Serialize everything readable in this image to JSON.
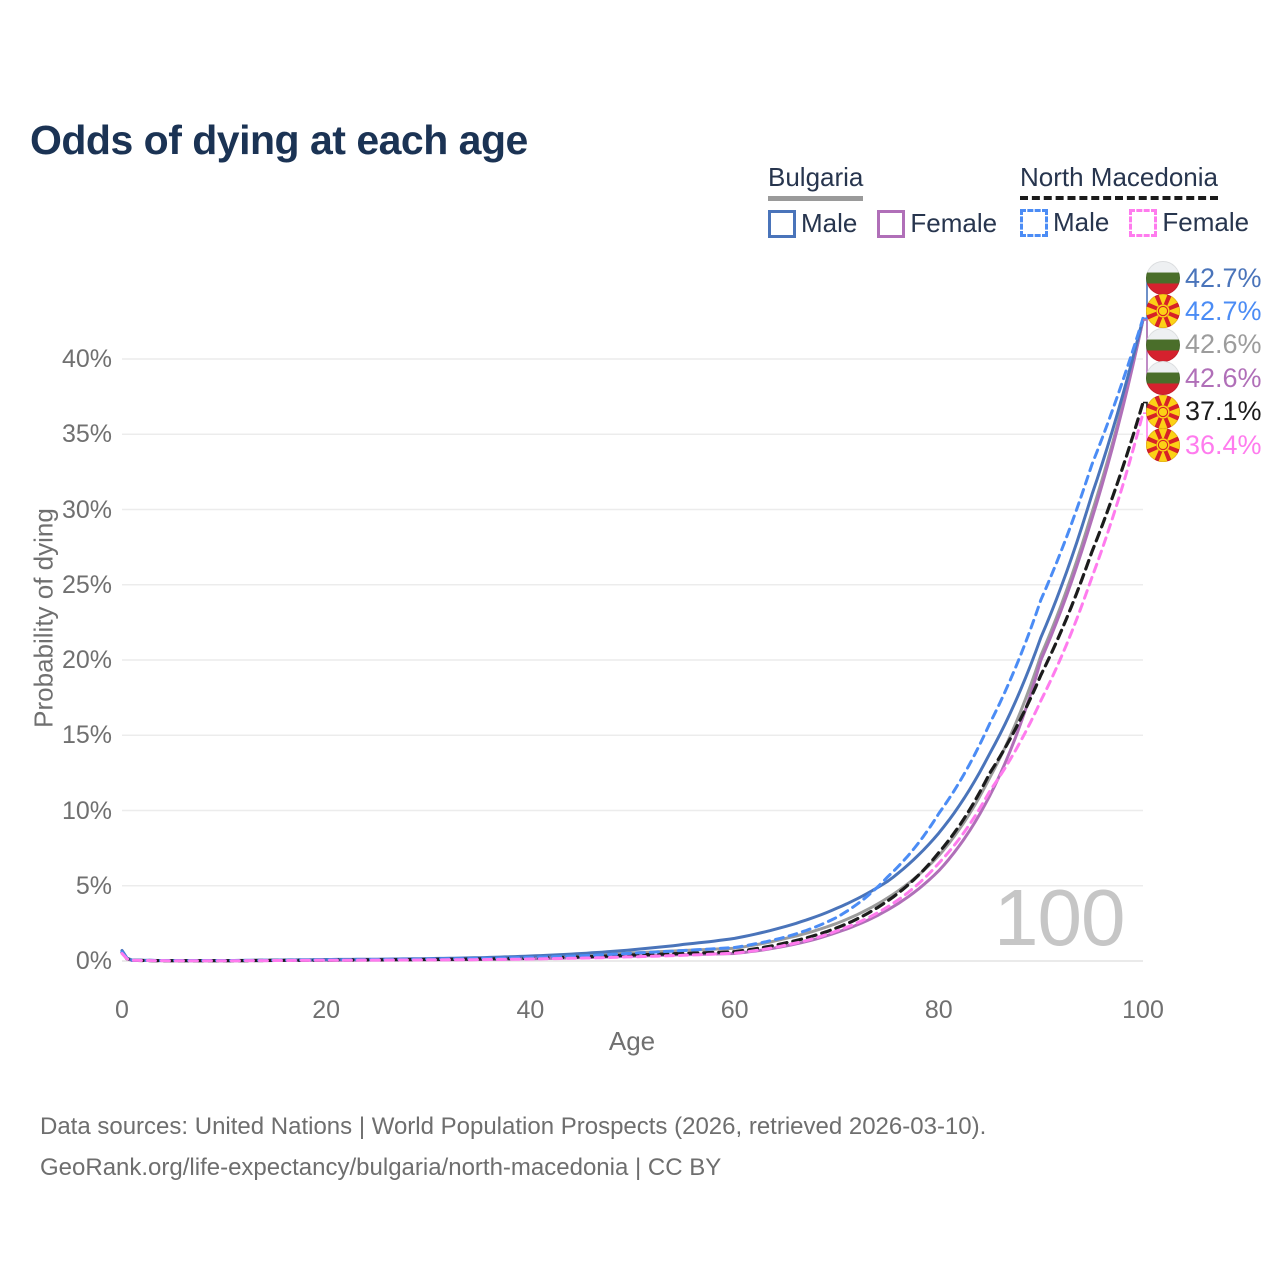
{
  "header": {
    "title": "Odds of dying at each age"
  },
  "legend": {
    "groups": [
      {
        "id": "bulgaria",
        "title": "Bulgaria",
        "line_style": "solid",
        "line_color": "#9a9a9a",
        "items": [
          {
            "label": "Male",
            "color": "#4a74ba",
            "dashed": false
          },
          {
            "label": "Female",
            "color": "#b06fb8",
            "dashed": false
          }
        ]
      },
      {
        "id": "north-macedonia",
        "title": "North Macedonia",
        "line_style": "dashed",
        "line_color": "#1b1b1b",
        "items": [
          {
            "label": "Male",
            "color": "#4b8cf5",
            "dashed": true
          },
          {
            "label": "Female",
            "color": "#ff7bee",
            "dashed": true
          }
        ]
      }
    ]
  },
  "chart_data": {
    "type": "line",
    "title": "Odds of dying at each age",
    "xlabel": "Age",
    "ylabel": "Probability of dying",
    "xlim": [
      0,
      100
    ],
    "ylim_pct": [
      0,
      44
    ],
    "xticks": [
      0,
      20,
      40,
      60,
      80,
      100
    ],
    "yticks_pct": [
      0,
      5,
      10,
      15,
      20,
      25,
      30,
      35,
      40
    ],
    "ytick_labels": [
      "0%",
      "5%",
      "10%",
      "15%",
      "20%",
      "25%",
      "30%",
      "35%",
      "40%"
    ],
    "grid": true,
    "legend_position": "top-right",
    "hover_age_label": "100",
    "x": [
      0,
      1,
      5,
      10,
      15,
      20,
      25,
      30,
      35,
      40,
      45,
      50,
      55,
      60,
      65,
      70,
      75,
      80,
      85,
      90,
      95,
      100
    ],
    "series": [
      {
        "id": "bulgaria-male",
        "name": "Bulgaria Male",
        "country": "Bulgaria",
        "flag": "bg",
        "color": "#4a74ba",
        "line": "solid",
        "end_label": "42.7%",
        "values": [
          0.7,
          0.05,
          0.03,
          0.03,
          0.06,
          0.1,
          0.12,
          0.16,
          0.22,
          0.33,
          0.5,
          0.75,
          1.1,
          1.5,
          2.3,
          3.5,
          5.3,
          8.5,
          13.8,
          21.5,
          31.0,
          42.7
        ]
      },
      {
        "id": "north-macedonia-male",
        "name": "North Macedonia Male",
        "country": "North Macedonia",
        "flag": "mk",
        "color": "#4b8cf5",
        "line": "dashed",
        "end_label": "42.7%",
        "values": [
          0.6,
          0.05,
          0.03,
          0.03,
          0.05,
          0.08,
          0.1,
          0.13,
          0.17,
          0.24,
          0.35,
          0.52,
          0.7,
          0.9,
          1.6,
          2.9,
          5.6,
          9.8,
          15.8,
          24.0,
          33.0,
          42.7
        ]
      },
      {
        "id": "bulgaria-total",
        "name": "Bulgaria",
        "country": "Bulgaria",
        "flag": "bg",
        "color": "#9c9c9c",
        "line": "solid",
        "end_label": "42.6%",
        "values": [
          0.6,
          0.04,
          0.02,
          0.02,
          0.05,
          0.08,
          0.09,
          0.12,
          0.16,
          0.24,
          0.36,
          0.54,
          0.7,
          0.85,
          1.5,
          2.5,
          4.2,
          7.0,
          12.2,
          20.3,
          29.8,
          42.6
        ]
      },
      {
        "id": "bulgaria-female",
        "name": "Bulgaria Female",
        "country": "Bulgaria",
        "flag": "bg",
        "color": "#b06fb8",
        "line": "solid",
        "end_label": "42.6%",
        "values": [
          0.55,
          0.04,
          0.02,
          0.02,
          0.03,
          0.05,
          0.06,
          0.08,
          0.1,
          0.15,
          0.22,
          0.32,
          0.42,
          0.5,
          1.0,
          1.9,
          3.4,
          6.0,
          11.0,
          20.0,
          29.4,
          42.6
        ]
      },
      {
        "id": "north-macedonia-total",
        "name": "North Macedonia",
        "country": "North Macedonia",
        "flag": "mk",
        "color": "#1c1c1c",
        "line": "dashed",
        "end_label": "37.1%",
        "values": [
          0.55,
          0.04,
          0.02,
          0.02,
          0.04,
          0.06,
          0.08,
          0.1,
          0.13,
          0.18,
          0.27,
          0.4,
          0.5,
          0.62,
          1.2,
          2.2,
          4.0,
          7.2,
          12.5,
          19.0,
          27.2,
          37.1
        ]
      },
      {
        "id": "north-macedonia-female",
        "name": "North Macedonia Female",
        "country": "North Macedonia",
        "flag": "mk",
        "color": "#ff7bee",
        "line": "dashed",
        "end_label": "36.4%",
        "values": [
          0.5,
          0.04,
          0.02,
          0.02,
          0.03,
          0.05,
          0.06,
          0.07,
          0.09,
          0.13,
          0.19,
          0.28,
          0.38,
          0.52,
          1.05,
          2.0,
          3.6,
          6.5,
          11.3,
          17.3,
          25.5,
          36.4
        ]
      }
    ]
  },
  "footer": {
    "line1": "Data sources: United Nations | World Population Prospects (2026, retrieved 2026-03-10).",
    "line2": "GeoRank.org/life-expectancy/bulgaria/north-macedonia | CC BY"
  }
}
